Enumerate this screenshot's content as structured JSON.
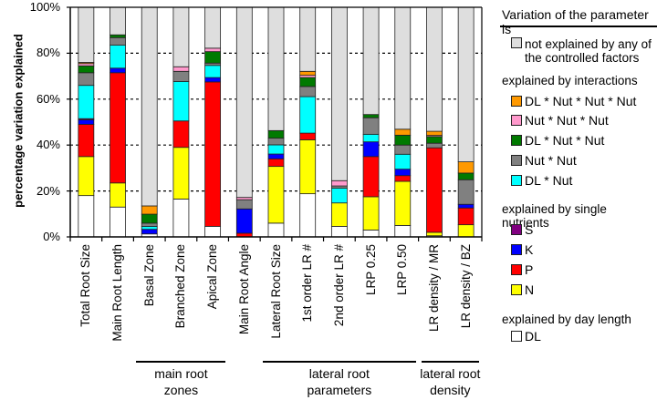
{
  "chart_data": {
    "type": "bar",
    "stacked": true,
    "ylabel": "percentage variation explained",
    "ylim": [
      0,
      100
    ],
    "yticks": [
      "0%",
      "20%",
      "40%",
      "60%",
      "80%",
      "100%"
    ],
    "grid": true,
    "legend_position": "right",
    "categories": [
      "Total Root Size",
      "Main Root Length",
      "Basal Zone",
      "Branched Zone",
      "Apical Zone",
      "Main Root Angle",
      "Lateral Root Size",
      "1st order LR #",
      "2nd order LR #",
      "LRP 0.25",
      "LRP 0.50",
      "LR density / MR",
      "LR density / BZ"
    ],
    "groups": [
      {
        "line1": "main root",
        "line2": "zones",
        "from": 2,
        "to": 4
      },
      {
        "line1": "lateral root",
        "line2": "parameters",
        "from": 6,
        "to": 10
      },
      {
        "line1": "lateral root",
        "line2": "density",
        "from": 11,
        "to": 12
      }
    ],
    "series": [
      {
        "name": "DL",
        "color": "#ffffff",
        "values": [
          18,
          13,
          1.3,
          16.5,
          4.6,
          0,
          6,
          18.8,
          4.6,
          3,
          5,
          0.5,
          0
        ]
      },
      {
        "name": "N",
        "color": "#ffff00",
        "values": [
          17,
          10.5,
          0,
          22.5,
          0,
          0,
          24.7,
          23.5,
          10.2,
          14.5,
          19.2,
          1.5,
          5.3
        ]
      },
      {
        "name": "P",
        "color": "#ff0000",
        "values": [
          14,
          48,
          0,
          11.5,
          62.9,
          1.6,
          3.3,
          2.9,
          0,
          17.5,
          2.5,
          36.8,
          7.3
        ]
      },
      {
        "name": "K",
        "color": "#0000ff",
        "values": [
          2,
          2,
          2,
          0,
          1.9,
          10.6,
          2.1,
          0,
          0,
          6.4,
          2.8,
          0,
          1.6
        ]
      },
      {
        "name": "S",
        "color": "#800080",
        "values": [
          0.5,
          0,
          0,
          0,
          0,
          0,
          0,
          0,
          0,
          0,
          0,
          0,
          0
        ]
      },
      {
        "name": "DL * Nut",
        "color": "#00ffff",
        "values": [
          14.5,
          10,
          1.3,
          17.2,
          5.3,
          0,
          4,
          15.9,
          6.4,
          3.3,
          6.5,
          0,
          0
        ]
      },
      {
        "name": "Nut * Nut",
        "color": "#808080",
        "values": [
          5.5,
          3.3,
          1.4,
          4.4,
          1,
          4,
          2.9,
          4.4,
          1,
          7.2,
          4,
          2,
          10.7
        ]
      },
      {
        "name": "DL * Nut * Nut",
        "color": "#007a00",
        "values": [
          3,
          1.2,
          3.9,
          0,
          5,
          0,
          3.3,
          3.9,
          0,
          1.4,
          4.3,
          2.9,
          2.9
        ]
      },
      {
        "name": "Nut * Nut * Nut",
        "color": "#ff99cc",
        "values": [
          1,
          0,
          0,
          2,
          1.5,
          1,
          0,
          1,
          2.3,
          0,
          0,
          0.5,
          0
        ]
      },
      {
        "name": "DL * Nut * Nut * Nut",
        "color": "#ff9900",
        "values": [
          0.5,
          0,
          3.6,
          0,
          0,
          0,
          0,
          1.7,
          0,
          0,
          2.6,
          1.8,
          4.9
        ]
      },
      {
        "name": "not explained",
        "color": "#dedede",
        "values": [
          24,
          12,
          86.5,
          25.9,
          17.8,
          82.8,
          53.7,
          27.9,
          75.5,
          46.7,
          53.1,
          54,
          67.3
        ]
      }
    ]
  },
  "legend": {
    "title": "Variation of the parameter is",
    "not_explained": {
      "line1": "not explained by any of",
      "line2": "the controlled factors",
      "color": "#dedede"
    },
    "interactions_header": "explained by interactions",
    "interactions": [
      {
        "label": "DL * Nut * Nut * Nut",
        "color": "#ff9900"
      },
      {
        "label": "Nut * Nut * Nut",
        "color": "#ff99cc"
      },
      {
        "label": "DL * Nut * Nut",
        "color": "#007a00"
      },
      {
        "label": "Nut * Nut",
        "color": "#808080"
      },
      {
        "label": "DL * Nut",
        "color": "#00ffff"
      }
    ],
    "single_header": "explained by single nutrients",
    "single": [
      {
        "label": "S",
        "color": "#800080"
      },
      {
        "label": "K",
        "color": "#0000ff"
      },
      {
        "label": "P",
        "color": "#ff0000"
      },
      {
        "label": "N",
        "color": "#ffff00"
      }
    ],
    "day_header": "explained by day length",
    "day": [
      {
        "label": "DL",
        "color": "#ffffff"
      }
    ]
  }
}
